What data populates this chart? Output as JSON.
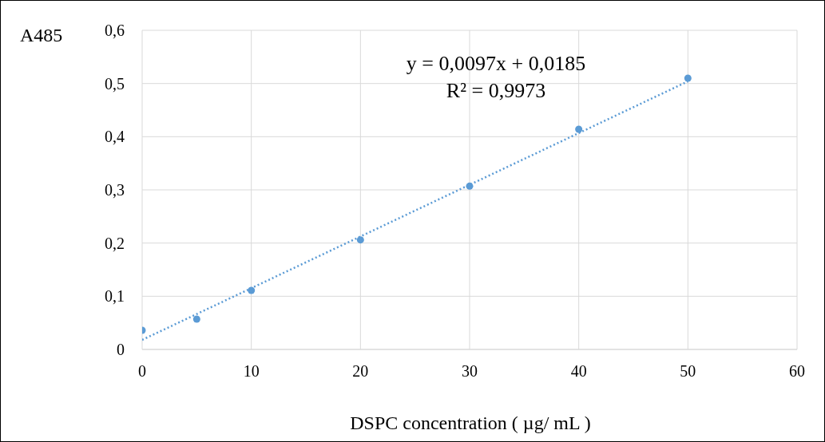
{
  "chart_data": {
    "type": "scatter",
    "ylabel": "A485",
    "xlabel": "DSPC concentration ( µg/ mL )",
    "annotations": [
      "y = 0,0097x + 0,0185",
      "R² = 0,9973"
    ],
    "series": [
      {
        "color": "#5b9bd5",
        "marker": "circle",
        "x": [
          0,
          5,
          10,
          20,
          30,
          40,
          50
        ],
        "values": [
          0.036,
          0.057,
          0.111,
          0.206,
          0.307,
          0.414,
          0.51
        ]
      },
      {
        "type": "line",
        "color": "#5b9bd5",
        "x": [
          0,
          50
        ],
        "values": [
          0.018,
          0.504
        ]
      }
    ],
    "xlim": [
      0,
      60
    ],
    "xticks": [
      0,
      10,
      20,
      30,
      40,
      50,
      60
    ],
    "ylim": [
      0,
      0.6
    ],
    "yticks": [
      0,
      {
        "value": 0.1,
        "label": "0,1"
      },
      {
        "value": 0.2,
        "label": "0,2"
      },
      {
        "value": 0.3,
        "label": "0,3"
      },
      {
        "value": 0.4,
        "label": "0,4"
      },
      {
        "value": 0.5,
        "label": "0,5"
      },
      {
        "value": 0.6,
        "label": "0,6"
      }
    ],
    "grid": true,
    "legend": false,
    "line_style": "dotted"
  }
}
